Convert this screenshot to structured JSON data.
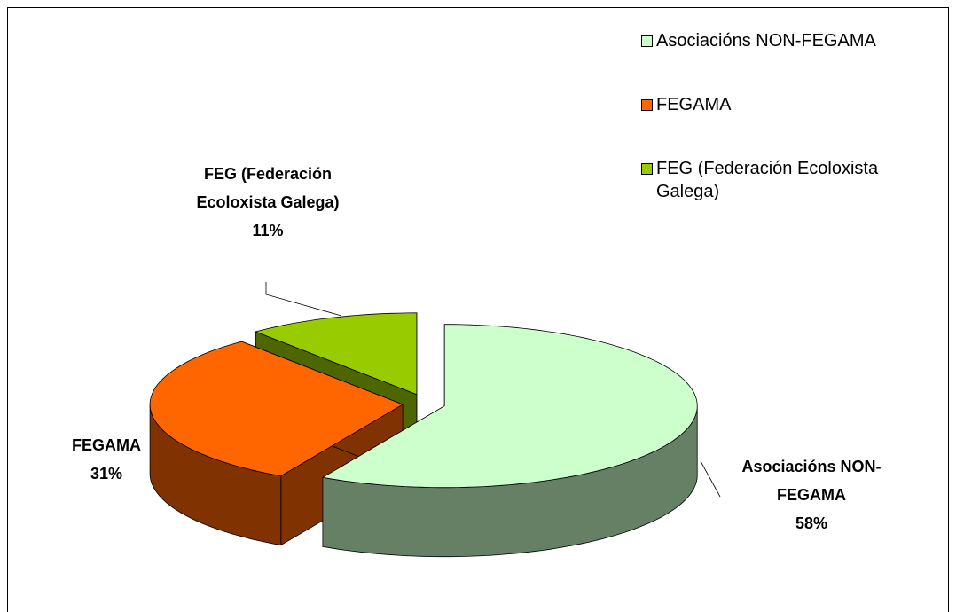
{
  "chart_data": {
    "type": "pie3d",
    "categories": [
      "Asociacións NON-FEGAMA",
      "FEGAMA",
      "FEG (Federación Ecoloxista Galega)"
    ],
    "values": [
      58,
      31,
      11
    ],
    "value_labels": [
      "58%",
      "31%",
      "11%"
    ],
    "colors": [
      "#ccffcc",
      "#ff6600",
      "#99cc00"
    ],
    "legend": "top-right"
  }
}
